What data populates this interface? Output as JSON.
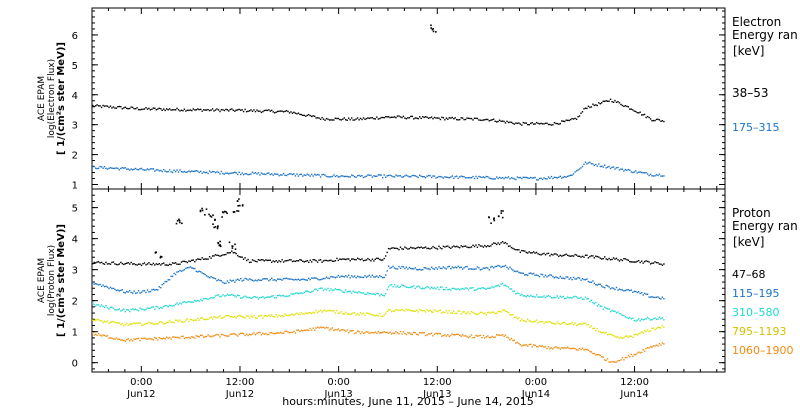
{
  "figure": {
    "xlabel": "hours:minutes, June 11, 2015 – June 14, 2015",
    "x_ticks": [
      {
        "time": "0:00",
        "day": "Jun12",
        "h": 24
      },
      {
        "time": "12:00",
        "day": "Jun12",
        "h": 36
      },
      {
        "time": "0:00",
        "day": "Jun13",
        "h": 48
      },
      {
        "time": "12:00",
        "day": "Jun13",
        "h": 60
      },
      {
        "time": "0:00",
        "day": "Jun14",
        "h": 72
      },
      {
        "time": "12:00",
        "day": "Jun14",
        "h": 84
      }
    ],
    "x_range_hours": [
      18,
      95
    ],
    "data_end_hour": 87.5
  },
  "chart_data": [
    {
      "type": "scatter",
      "ylabel_lines": [
        "ACE EPAM",
        "log(Electron Flux)",
        "[ 1/(cm²s ster MeV)]"
      ],
      "ylim": [
        0.85,
        6.9
      ],
      "yticks": [
        1,
        2,
        3,
        4,
        5,
        6
      ],
      "legend_title": [
        "Electron",
        "Energy ran"
      ],
      "legend_unit": "[keV]",
      "series": [
        {
          "name": "38–53",
          "color": "#000000",
          "points": [
            [
              18,
              3.65
            ],
            [
              24,
              3.55
            ],
            [
              30,
              3.52
            ],
            [
              36,
              3.5
            ],
            [
              42,
              3.45
            ],
            [
              46,
              3.22
            ],
            [
              50,
              3.2
            ],
            [
              54,
              3.28
            ],
            [
              58,
              3.25
            ],
            [
              62,
              3.22
            ],
            [
              66,
              3.2
            ],
            [
              70,
              3.05
            ],
            [
              74,
              3.05
            ],
            [
              76,
              3.15
            ],
            [
              77,
              3.25
            ],
            [
              78,
              3.6
            ],
            [
              80,
              3.75
            ],
            [
              81,
              3.85
            ],
            [
              82,
              3.75
            ],
            [
              84,
              3.5
            ],
            [
              86,
              3.2
            ],
            [
              87.5,
              3.15
            ]
          ],
          "outliers": [
            [
              59.5,
              6.25
            ]
          ]
        },
        {
          "name": "175–315",
          "color": "#1a73c8",
          "points": [
            [
              18,
              1.6
            ],
            [
              24,
              1.52
            ],
            [
              30,
              1.45
            ],
            [
              36,
              1.4
            ],
            [
              42,
              1.35
            ],
            [
              48,
              1.3
            ],
            [
              54,
              1.3
            ],
            [
              60,
              1.28
            ],
            [
              66,
              1.25
            ],
            [
              72,
              1.22
            ],
            [
              76,
              1.3
            ],
            [
              77,
              1.5
            ],
            [
              78,
              1.75
            ],
            [
              80,
              1.65
            ],
            [
              82,
              1.55
            ],
            [
              84,
              1.45
            ],
            [
              86,
              1.35
            ],
            [
              87.5,
              1.35
            ]
          ]
        }
      ]
    },
    {
      "type": "scatter",
      "ylabel_lines": [
        "ACE EPAM",
        "log(Proton Flux)",
        "[ 1/(cm²s ster MeV)]"
      ],
      "ylim": [
        -0.3,
        5.6
      ],
      "yticks": [
        0,
        1,
        2,
        3,
        4,
        5
      ],
      "legend_title": [
        "Proton",
        "Energy ran"
      ],
      "legend_unit": "[keV]",
      "series": [
        {
          "name": "47–68",
          "color": "#000000",
          "points": [
            [
              18,
              3.25
            ],
            [
              24,
              3.2
            ],
            [
              28,
              3.2
            ],
            [
              30,
              3.3
            ],
            [
              32,
              3.4
            ],
            [
              35,
              3.6
            ],
            [
              37,
              3.3
            ],
            [
              42,
              3.3
            ],
            [
              46,
              3.3
            ],
            [
              48,
              3.35
            ],
            [
              52,
              3.35
            ],
            [
              53.5,
              3.35
            ],
            [
              54,
              3.7
            ],
            [
              58,
              3.72
            ],
            [
              62,
              3.75
            ],
            [
              66,
              3.8
            ],
            [
              68,
              3.9
            ],
            [
              70,
              3.6
            ],
            [
              74,
              3.5
            ],
            [
              78,
              3.45
            ],
            [
              82,
              3.35
            ],
            [
              86,
              3.25
            ],
            [
              87.5,
              3.2
            ]
          ],
          "outliers": [
            [
              28.5,
              4.6
            ],
            [
              31.5,
              4.9
            ],
            [
              32.5,
              4.7
            ],
            [
              33,
              4.4
            ],
            [
              34,
              4.8
            ],
            [
              35.5,
              5.0
            ],
            [
              36,
              5.2
            ],
            [
              35,
              3.8
            ],
            [
              33.5,
              3.9
            ],
            [
              26,
              3.5
            ],
            [
              66.5,
              4.6
            ],
            [
              67.5,
              4.8
            ]
          ]
        },
        {
          "name": "115–195",
          "color": "#1a73c8",
          "points": [
            [
              18,
              2.6
            ],
            [
              22,
              2.3
            ],
            [
              24,
              2.3
            ],
            [
              26,
              2.4
            ],
            [
              28,
              2.9
            ],
            [
              30,
              3.1
            ],
            [
              32,
              2.8
            ],
            [
              34,
              2.6
            ],
            [
              36,
              2.7
            ],
            [
              40,
              2.7
            ],
            [
              44,
              2.7
            ],
            [
              48,
              2.8
            ],
            [
              52,
              2.8
            ],
            [
              53.5,
              2.8
            ],
            [
              54,
              3.1
            ],
            [
              58,
              3.05
            ],
            [
              62,
              3.1
            ],
            [
              66,
              3.05
            ],
            [
              68,
              3.15
            ],
            [
              70,
              2.9
            ],
            [
              74,
              2.8
            ],
            [
              78,
              2.7
            ],
            [
              80,
              2.5
            ],
            [
              82,
              2.4
            ],
            [
              84,
              2.3
            ],
            [
              86,
              2.15
            ],
            [
              87.5,
              2.1
            ]
          ]
        },
        {
          "name": "310–580",
          "color": "#20d8d0",
          "points": [
            [
              18,
              1.9
            ],
            [
              22,
              1.7
            ],
            [
              26,
              1.8
            ],
            [
              30,
              2.0
            ],
            [
              34,
              2.2
            ],
            [
              38,
              2.1
            ],
            [
              42,
              2.2
            ],
            [
              46,
              2.4
            ],
            [
              50,
              2.3
            ],
            [
              53.5,
              2.2
            ],
            [
              54,
              2.5
            ],
            [
              58,
              2.45
            ],
            [
              62,
              2.4
            ],
            [
              66,
              2.4
            ],
            [
              68,
              2.55
            ],
            [
              70,
              2.2
            ],
            [
              74,
              2.15
            ],
            [
              78,
              2.1
            ],
            [
              80,
              1.8
            ],
            [
              82,
              1.6
            ],
            [
              84,
              1.4
            ],
            [
              86,
              1.45
            ],
            [
              87.5,
              1.45
            ]
          ]
        },
        {
          "name": "795–1193",
          "color": "#e0e000",
          "points": [
            [
              18,
              1.4
            ],
            [
              22,
              1.25
            ],
            [
              26,
              1.3
            ],
            [
              30,
              1.4
            ],
            [
              34,
              1.5
            ],
            [
              38,
              1.5
            ],
            [
              42,
              1.55
            ],
            [
              46,
              1.7
            ],
            [
              50,
              1.6
            ],
            [
              53.5,
              1.55
            ],
            [
              54,
              1.7
            ],
            [
              58,
              1.7
            ],
            [
              62,
              1.65
            ],
            [
              66,
              1.6
            ],
            [
              68,
              1.7
            ],
            [
              70,
              1.4
            ],
            [
              74,
              1.3
            ],
            [
              78,
              1.25
            ],
            [
              80,
              1.0
            ],
            [
              82,
              0.8
            ],
            [
              84,
              0.9
            ],
            [
              86,
              1.1
            ],
            [
              87.5,
              1.2
            ]
          ]
        },
        {
          "name": "1060–1900",
          "color": "#f08a10",
          "points": [
            [
              18,
              0.95
            ],
            [
              22,
              0.75
            ],
            [
              26,
              0.8
            ],
            [
              30,
              0.85
            ],
            [
              34,
              0.9
            ],
            [
              38,
              0.95
            ],
            [
              42,
              1.0
            ],
            [
              46,
              1.15
            ],
            [
              50,
              1.0
            ],
            [
              54,
              1.0
            ],
            [
              58,
              0.95
            ],
            [
              62,
              0.9
            ],
            [
              66,
              0.85
            ],
            [
              68,
              0.9
            ],
            [
              70,
              0.6
            ],
            [
              74,
              0.5
            ],
            [
              78,
              0.45
            ],
            [
              80,
              0.2
            ],
            [
              81,
              0.05
            ],
            [
              82,
              0.1
            ],
            [
              84,
              0.3
            ],
            [
              86,
              0.55
            ],
            [
              87.5,
              0.65
            ]
          ]
        }
      ]
    }
  ]
}
